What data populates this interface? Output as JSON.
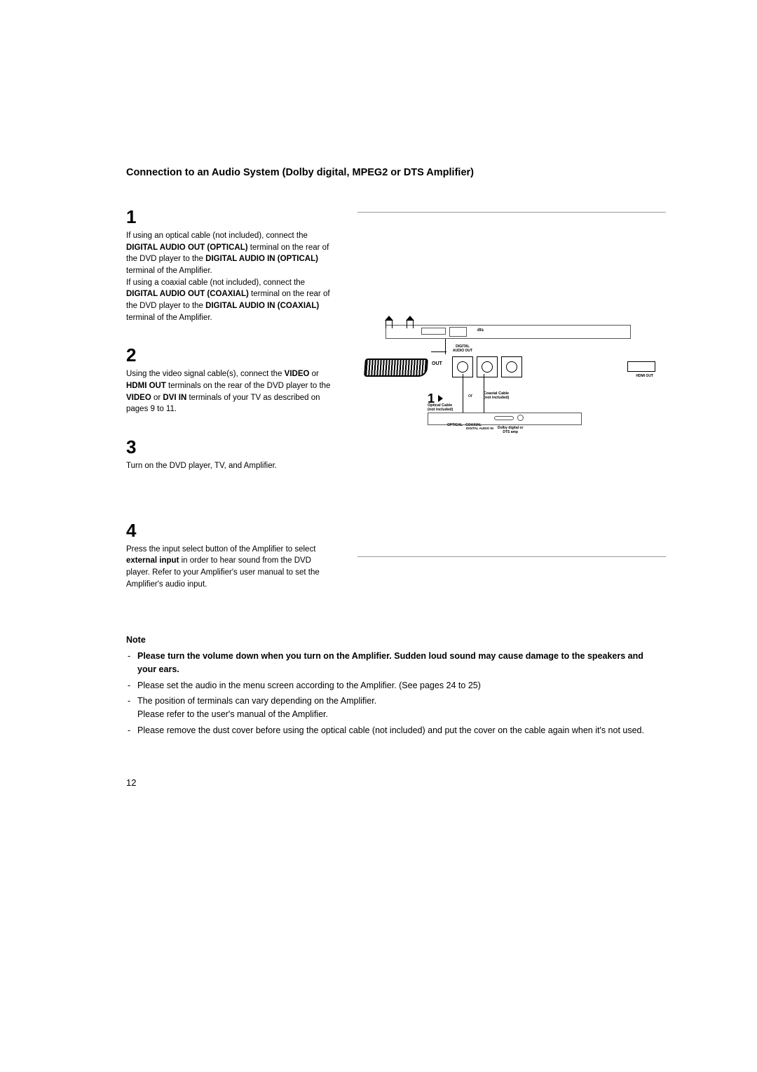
{
  "title": "Connection to an Audio System (Dolby digital, MPEG2 or DTS Amplifier)",
  "steps": {
    "s1": {
      "num": "1",
      "p1a": "If using an optical cable (not included), connect the ",
      "p1b": "DIGITAL AUDIO OUT (OPTICAL)",
      "p1c": " terminal on the rear of the DVD player to the ",
      "p1d": "DIGITAL AUDIO IN (OPTICAL)",
      "p1e": " terminal of the Amplifier.",
      "p2a": "If using a coaxial cable (not included), connect the ",
      "p2b": "DIGITAL AUDIO OUT (COAXIAL)",
      "p2c": " terminal on the rear of the DVD player to the ",
      "p2d": "DIGITAL AUDIO IN (COAXIAL)",
      "p2e": " terminal of the Amplifier."
    },
    "s2": {
      "num": "2",
      "a": "Using the video signal cable(s), connect the ",
      "b": "VIDEO",
      "c": " or ",
      "d": "HDMI OUT",
      "e": " terminals on the rear of the DVD player to the ",
      "f": "VIDEO",
      "g": " or ",
      "h": "DVI IN",
      "i": " terminals of your TV as described on pages 9 to 11."
    },
    "s3": {
      "num": "3",
      "text": "Turn on the DVD player, TV, and Amplifier."
    },
    "s4": {
      "num": "4",
      "a": "Press the input select button of the Amplifier to select ",
      "b": "external input",
      "c": " in order to hear sound from the DVD player. Refer to your Amplifier's user manual to set the Amplifier's audio input."
    }
  },
  "diagram": {
    "dts": "dts",
    "out": "OUT",
    "digital_audio_out": "DIGITAL\nAUDIO OUT",
    "hdmi_out": "HDMI OUT",
    "callout1": "1",
    "or": "or",
    "optical_cable": "Optical Cable\n(not included)",
    "coaxial_cable": "Coaxial Cable\n(not included)",
    "optical": "OPTICAL",
    "coaxial": "COAXIAL",
    "digital_audio_in": "DIGITAL AUDIO IN",
    "amp_desc": "Dolby digital or\nDTS amp"
  },
  "note": {
    "header": "Note",
    "items": [
      {
        "bold": true,
        "text": "Please turn the volume down when you turn on the Amplifier. Sudden loud sound may cause damage to the speakers and your ears."
      },
      {
        "bold": false,
        "text": "Please set the audio in the menu screen according to the Amplifier. (See pages 24 to 25)"
      },
      {
        "bold": false,
        "text": "The position of terminals can vary depending on the Amplifier.\nPlease refer to the user's manual of the Amplifier."
      },
      {
        "bold": false,
        "text": "Please remove the dust cover before using the optical cable (not included) and put the cover on the cable again when it's not used."
      }
    ]
  },
  "page_number": "12"
}
